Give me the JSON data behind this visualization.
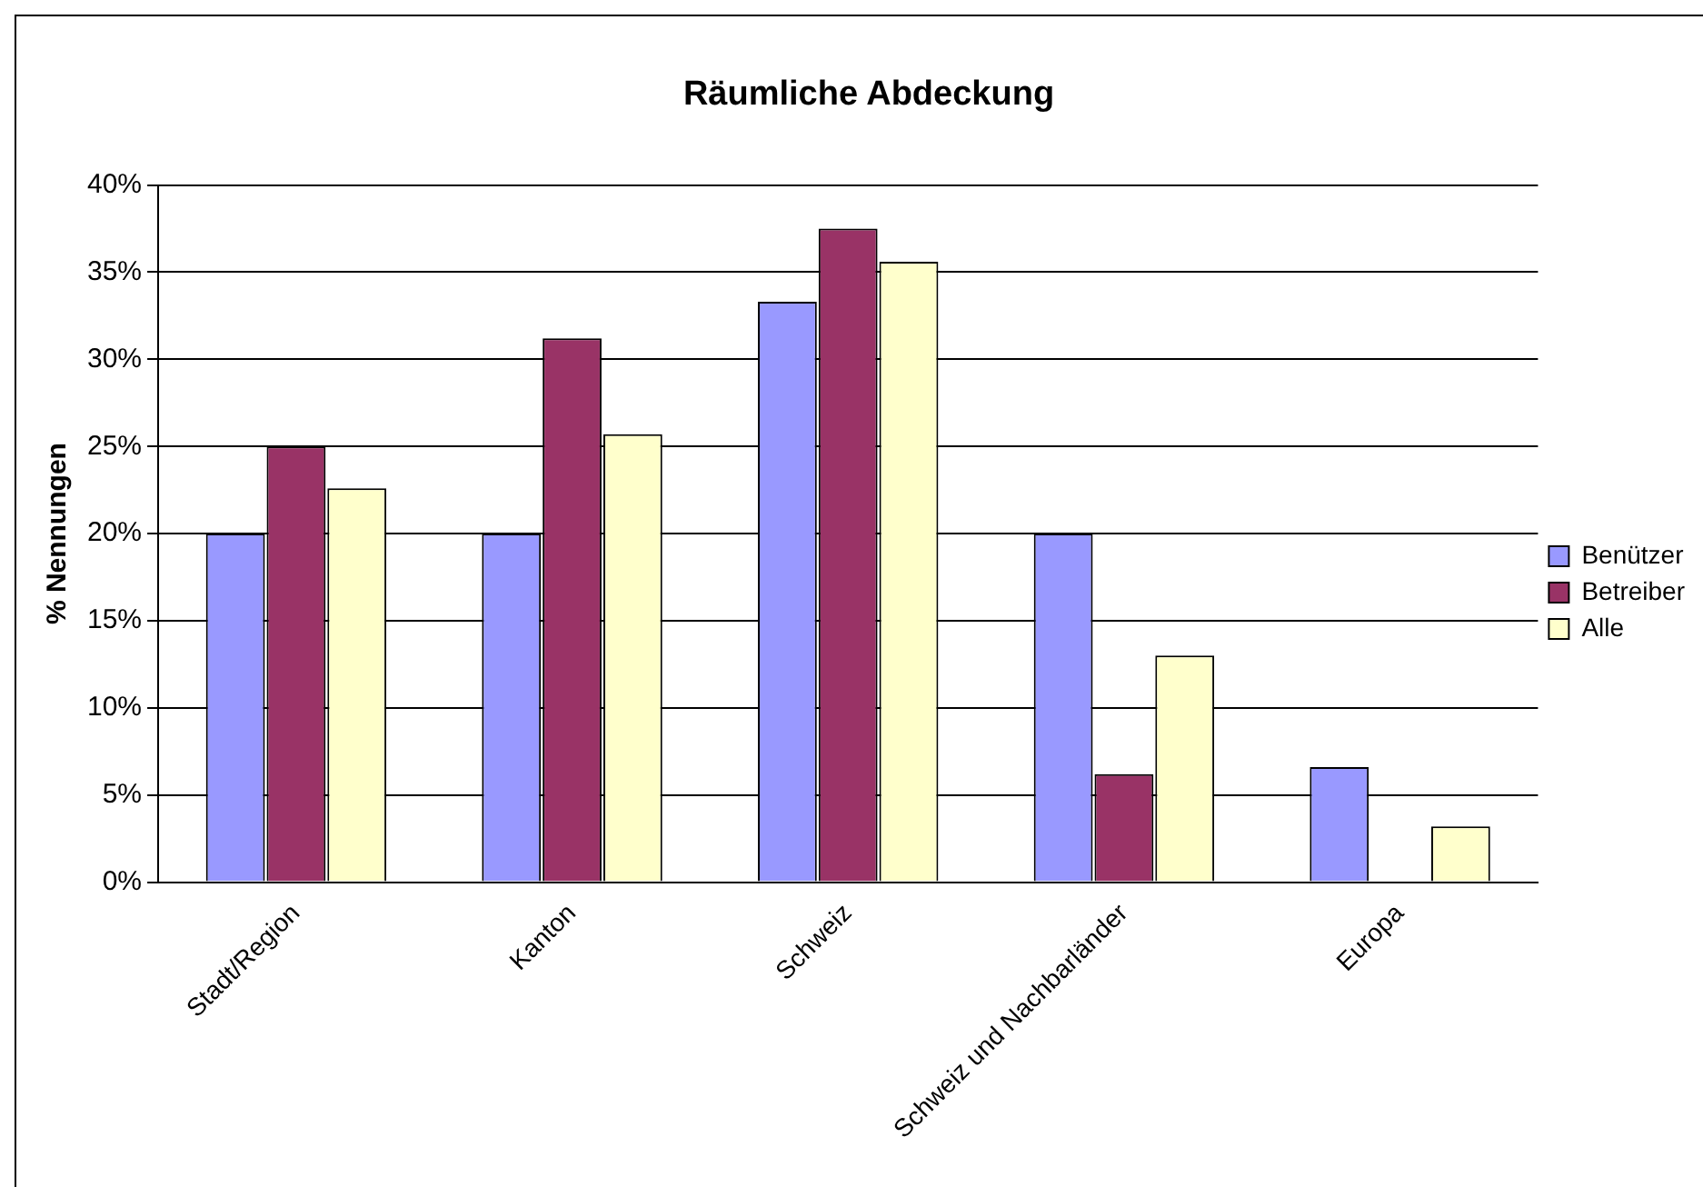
{
  "chart_data": {
    "type": "bar",
    "title": "Räumliche Abdeckung",
    "ylabel": "% Nennungen",
    "categories": [
      "Stadt/Region",
      "Kanton",
      "Schweiz",
      "Schweiz und Nachbarländer",
      "Europa"
    ],
    "series": [
      {
        "name": "Benützer",
        "color": "#9999ff",
        "values": [
          20,
          20,
          33.3,
          20,
          6.6
        ]
      },
      {
        "name": "Betreiber",
        "color": "#993366",
        "values": [
          25,
          31.2,
          37.5,
          6.2,
          0
        ]
      },
      {
        "name": "Alle",
        "color": "#ffffcc",
        "values": [
          22.6,
          25.7,
          35.6,
          13.0,
          3.2
        ]
      }
    ],
    "ylim": [
      0,
      40
    ],
    "yticks": [
      {
        "value": 0,
        "label": "0%"
      },
      {
        "value": 5,
        "label": "5%"
      },
      {
        "value": 10,
        "label": "10%"
      },
      {
        "value": 15,
        "label": "15%"
      },
      {
        "value": 20,
        "label": "20%"
      },
      {
        "value": 25,
        "label": "25%"
      },
      {
        "value": 30,
        "label": "30%"
      },
      {
        "value": 35,
        "label": "35%"
      },
      {
        "value": 40,
        "label": "40%"
      }
    ],
    "grid": "y",
    "legend": "right"
  }
}
